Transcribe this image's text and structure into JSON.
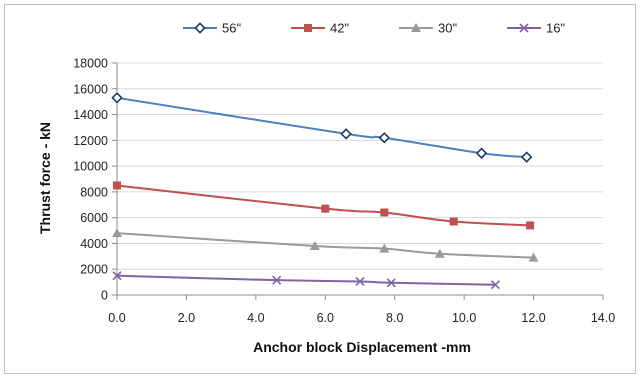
{
  "chart_data": {
    "type": "line",
    "title": "",
    "xlabel": "Anchor block Displacement -mm",
    "ylabel": "Thrust force - kN",
    "xlim": [
      0,
      14
    ],
    "ylim": [
      0,
      18000
    ],
    "x_ticks": [
      "0.0",
      "2.0",
      "4.0",
      "6.0",
      "8.0",
      "10.0",
      "12.0",
      "14.0"
    ],
    "y_ticks": [
      "0",
      "2000",
      "4000",
      "6000",
      "8000",
      "10000",
      "12000",
      "14000",
      "16000",
      "18000"
    ],
    "grid": "horizontal",
    "legend_position": "top",
    "series": [
      {
        "name": "56\"",
        "color": "#4f81bd",
        "marker": "diamond",
        "points": [
          [
            0.0,
            15300
          ],
          [
            6.6,
            12500
          ],
          [
            7.7,
            12200
          ],
          [
            10.5,
            11000
          ],
          [
            11.8,
            10700
          ]
        ]
      },
      {
        "name": "42\"",
        "color": "#c0504d",
        "marker": "square",
        "points": [
          [
            0.0,
            8500
          ],
          [
            6.0,
            6700
          ],
          [
            7.7,
            6400
          ],
          [
            9.7,
            5700
          ],
          [
            11.9,
            5400
          ]
        ]
      },
      {
        "name": "30\"",
        "color": "#9a9a9a",
        "marker": "triangle",
        "points": [
          [
            0.0,
            4800
          ],
          [
            5.7,
            3800
          ],
          [
            7.7,
            3600
          ],
          [
            9.3,
            3200
          ],
          [
            12.0,
            2900
          ]
        ]
      },
      {
        "name": "16\"",
        "color": "#8064a2",
        "marker": "x",
        "points": [
          [
            0.0,
            1500
          ],
          [
            4.6,
            1150
          ],
          [
            7.0,
            1050
          ],
          [
            7.9,
            950
          ],
          [
            10.9,
            800
          ]
        ]
      }
    ]
  }
}
